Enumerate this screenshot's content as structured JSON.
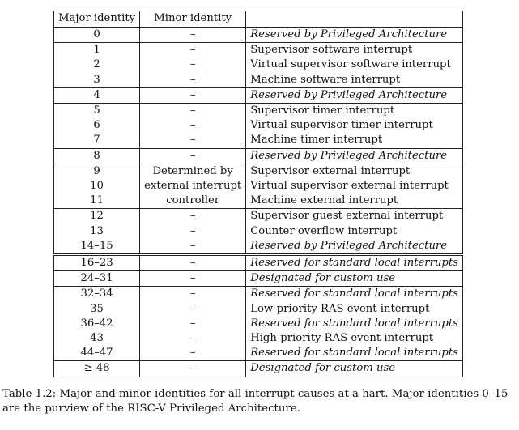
{
  "table": {
    "headers": {
      "major": "Major identity",
      "minor": "Minor identity",
      "description": ""
    },
    "rows": [
      {
        "major": "0",
        "minor": "–",
        "description": "Reserved by Privileged Architecture",
        "reserved": true,
        "group": "top"
      },
      {
        "major": "1",
        "minor": "–",
        "description": "Supervisor software interrupt",
        "reserved": false,
        "group": "top"
      },
      {
        "major": "2",
        "minor": "–",
        "description": "Virtual supervisor software interrupt",
        "reserved": false,
        "group": ""
      },
      {
        "major": "3",
        "minor": "–",
        "description": "Machine software interrupt",
        "reserved": false,
        "group": ""
      },
      {
        "major": "4",
        "minor": "–",
        "description": "Reserved by Privileged Architecture",
        "reserved": true,
        "group": "top"
      },
      {
        "major": "5",
        "minor": "–",
        "description": "Supervisor timer interrupt",
        "reserved": false,
        "group": "top"
      },
      {
        "major": "6",
        "minor": "–",
        "description": "Virtual supervisor timer interrupt",
        "reserved": false,
        "group": ""
      },
      {
        "major": "7",
        "minor": "–",
        "description": "Machine timer interrupt",
        "reserved": false,
        "group": ""
      },
      {
        "major": "8",
        "minor": "–",
        "description": "Reserved by Privileged Architecture",
        "reserved": true,
        "group": "top"
      },
      {
        "major": "9",
        "minor": "Determined by",
        "description": "Supervisor external interrupt",
        "reserved": false,
        "group": "top"
      },
      {
        "major": "10",
        "minor": "external interrupt",
        "description": "Virtual supervisor external interrupt",
        "reserved": false,
        "group": ""
      },
      {
        "major": "11",
        "minor": "controller",
        "description": "Machine external interrupt",
        "reserved": false,
        "group": ""
      },
      {
        "major": "12",
        "minor": "–",
        "description": "Supervisor guest external interrupt",
        "reserved": false,
        "group": "top"
      },
      {
        "major": "13",
        "minor": "–",
        "description": "Counter overflow interrupt",
        "reserved": false,
        "group": ""
      },
      {
        "major": "14–15",
        "minor": "–",
        "description": "Reserved by Privileged Architecture",
        "reserved": true,
        "group": ""
      },
      {
        "major": "16–23",
        "minor": "–",
        "description": "Reserved for standard local interrupts",
        "reserved": true,
        "group": "double"
      },
      {
        "major": "24–31",
        "minor": "–",
        "description": "Designated for custom use",
        "reserved": true,
        "group": "top"
      },
      {
        "major": "32–34",
        "minor": "–",
        "description": "Reserved for standard local interrupts",
        "reserved": true,
        "group": "top"
      },
      {
        "major": "35",
        "minor": "–",
        "description": "Low-priority RAS event interrupt",
        "reserved": false,
        "group": ""
      },
      {
        "major": "36–42",
        "minor": "–",
        "description": "Reserved for standard local interrupts",
        "reserved": true,
        "group": ""
      },
      {
        "major": "43",
        "minor": "–",
        "description": "High-priority RAS event interrupt",
        "reserved": false,
        "group": ""
      },
      {
        "major": "44–47",
        "minor": "–",
        "description": "Reserved for standard local interrupts",
        "reserved": true,
        "group": ""
      },
      {
        "major": "≥ 48",
        "minor": "–",
        "description": "Designated for custom use",
        "reserved": true,
        "group": "top"
      }
    ]
  },
  "caption": {
    "label": "Table 1.2:",
    "text": "Major and minor identities for all interrupt causes at a hart. Major identities 0–15 are the purview of the RISC-V Privileged Architecture."
  }
}
